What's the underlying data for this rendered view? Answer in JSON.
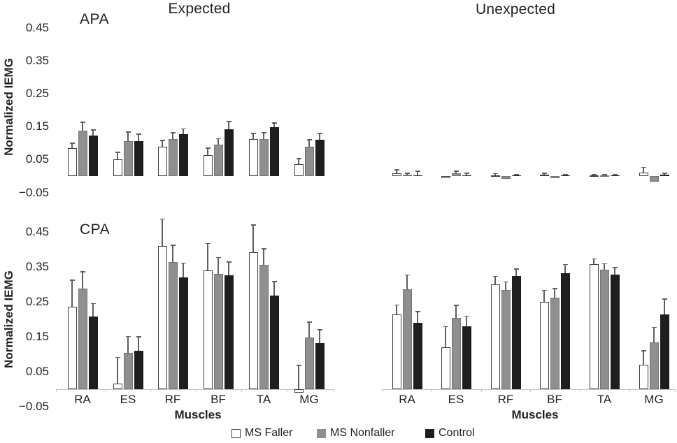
{
  "figure": {
    "col_titles": [
      "Expected",
      "Unexpected"
    ],
    "row_labels": [
      "APA",
      "CPA"
    ],
    "ylabel": "Normalized IEMG",
    "xlabel": "Muscles"
  },
  "legend": {
    "items": [
      {
        "label": "MS Faller",
        "swatch": "white-outline-square"
      },
      {
        "label": "MS Nonfaller",
        "swatch": "gray-square"
      },
      {
        "label": "Control",
        "swatch": "black-square"
      }
    ]
  },
  "colors": {
    "faller_fill": "#ffffff",
    "faller_border": "#3e3e3e",
    "nonfaller_fill": "#8f8f8f",
    "nonfaller_border": "#747474",
    "control_fill": "#1e1e1e",
    "error_bar": "#5f5f5f",
    "axis_line": "#c4c4c4",
    "text": "#231f20"
  },
  "chart_data": {
    "type": "bar",
    "title": "",
    "categories": [
      "RA",
      "ES",
      "RF",
      "BF",
      "TA",
      "MG"
    ],
    "series_names": [
      "MS Faller",
      "MS Nonfaller",
      "Control"
    ],
    "ylabel": "Normalized IEMG",
    "xlabel": "Muscles",
    "ylim": [
      -0.05,
      0.5
    ],
    "grid": false,
    "legend_position": "bottom-center",
    "error_bars": "upward, cap width ~7px",
    "yticks": [
      {
        "value": 0.45,
        "label": "0.45"
      },
      {
        "value": 0.35,
        "label": "0.35"
      },
      {
        "value": 0.25,
        "label": "0.25"
      },
      {
        "value": 0.15,
        "label": "0.15"
      },
      {
        "value": 0.05,
        "label": "0.05"
      },
      {
        "value": -0.05,
        "label": "−0.05"
      }
    ],
    "panels": [
      {
        "name": "APA Expected",
        "row": 0,
        "col": 0,
        "series": [
          {
            "name": "MS Faller",
            "values": [
              0.085,
              0.05,
              0.09,
              0.064,
              0.113,
              0.035
            ],
            "errors": [
              0.015,
              0.022,
              0.018,
              0.021,
              0.016,
              0.018
            ]
          },
          {
            "name": "MS Nonfaller",
            "values": [
              0.138,
              0.106,
              0.113,
              0.095,
              0.113,
              0.088
            ],
            "errors": [
              0.025,
              0.028,
              0.018,
              0.018,
              0.018,
              0.022
            ]
          },
          {
            "name": "Control",
            "values": [
              0.122,
              0.105,
              0.127,
              0.141,
              0.149,
              0.11
            ],
            "errors": [
              0.018,
              0.022,
              0.016,
              0.024,
              0.012,
              0.019
            ]
          }
        ]
      },
      {
        "name": "APA Unexpected",
        "row": 0,
        "col": 1,
        "series": [
          {
            "name": "MS Faller",
            "values": [
              0.009,
              -0.007,
              0.003,
              0.004,
              0.002,
              0.011
            ],
            "errors": [
              0.01,
              0,
              0.004,
              0.004,
              0.002,
              0.015
            ]
          },
          {
            "name": "MS Nonfaller",
            "values": [
              0.005,
              0.009,
              -0.008,
              -0.007,
              0.002,
              -0.017
            ],
            "errors": [
              0.004,
              0.006,
              0,
              0,
              0.002,
              0
            ]
          },
          {
            "name": "Control",
            "values": [
              0.002,
              0.003,
              0.002,
              0.002,
              0.002,
              0.004
            ],
            "errors": [
              0.013,
              0.005,
              0.002,
              0.002,
              0.002,
              0.005
            ]
          }
        ]
      },
      {
        "name": "CPA Expected",
        "row": 1,
        "col": 0,
        "series": [
          {
            "name": "MS Faller",
            "values": [
              0.237,
              0.016,
              0.411,
              0.34,
              0.393,
              -0.01
            ],
            "errors": [
              0.075,
              0.075,
              0.076,
              0.077,
              0.077,
              0.078
            ]
          },
          {
            "name": "MS Nonfaller",
            "values": [
              0.289,
              0.104,
              0.365,
              0.33,
              0.357,
              0.148
            ],
            "errors": [
              0.047,
              0.047,
              0.047,
              0.047,
              0.045,
              0.044
            ]
          },
          {
            "name": "Control",
            "values": [
              0.208,
              0.111,
              0.321,
              0.326,
              0.268,
              0.133
            ],
            "errors": [
              0.037,
              0.039,
              0.04,
              0.038,
              0.04,
              0.037
            ]
          }
        ]
      },
      {
        "name": "CPA Unexpected",
        "row": 1,
        "col": 1,
        "series": [
          {
            "name": "MS Faller",
            "values": [
              0.214,
              0.121,
              0.301,
              0.251,
              0.358,
              0.071
            ],
            "errors": [
              0.027,
              0.058,
              0.022,
              0.032,
              0.015,
              0.039
            ]
          },
          {
            "name": "MS Nonfaller",
            "values": [
              0.287,
              0.205,
              0.285,
              0.263,
              0.343,
              0.135
            ],
            "errors": [
              0.04,
              0.035,
              0.022,
              0.025,
              0.016,
              0.042
            ]
          },
          {
            "name": "Control",
            "values": [
              0.19,
              0.181,
              0.325,
              0.332,
              0.328,
              0.215
            ],
            "errors": [
              0.032,
              0.028,
              0.019,
              0.025,
              0.02,
              0.043
            ]
          }
        ]
      }
    ]
  }
}
